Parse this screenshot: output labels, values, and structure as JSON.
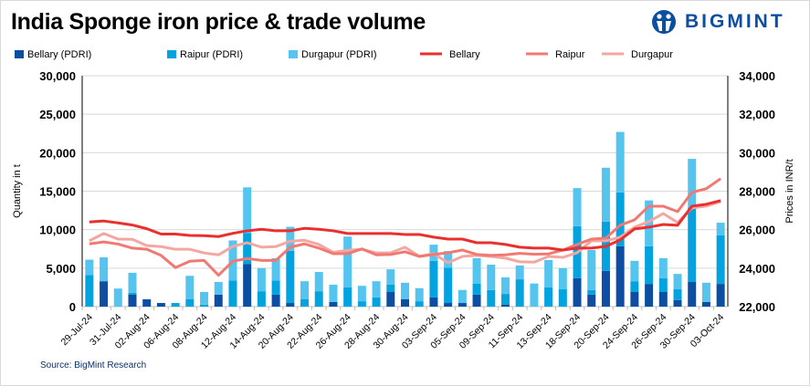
{
  "header": {
    "title": "India Sponge iron price & trade volume",
    "logo": "BIGMINT"
  },
  "source": "Source: BigMint Research",
  "chart_data": {
    "type": "bar+line",
    "title": "India Sponge iron price & trade volume",
    "ylabel": "Quantity in t",
    "y2label": "Prices in INR/t",
    "ylim": [
      0,
      30000
    ],
    "y2lim": [
      22000,
      34000
    ],
    "yticks": [
      "0",
      "5,000",
      "10,000",
      "15,000",
      "20,000",
      "25,000",
      "30,000"
    ],
    "y2ticks": [
      "22,000",
      "24,000",
      "26,000",
      "28,000",
      "30,000",
      "32,000",
      "34,000"
    ],
    "grid": true,
    "legend": "top",
    "categories": [
      "29-Jul-24",
      "",
      "31-Jul-24",
      "",
      "02-Aug-24",
      "",
      "06-Aug-24",
      "",
      "08-Aug-24",
      "",
      "12-Aug-24",
      "",
      "14-Aug-24",
      "",
      "20-Aug-24",
      "",
      "22-Aug-24",
      "",
      "26-Aug-24",
      "",
      "28-Aug-24",
      "",
      "30-Aug-24",
      "",
      "03-Sep-24",
      "",
      "05-Sep-24",
      "",
      "09-Sep-24",
      "",
      "11-Sep-24",
      "",
      "13-Sep-24",
      "",
      "18-Sep-24",
      "",
      "20-Sep-24",
      "",
      "24-Sep-24",
      "",
      "26-Sep-24",
      "",
      "30-Sep-24",
      "",
      "03-Oct-24"
    ],
    "bar_series": [
      {
        "name": "Bellary (PDRI)",
        "color": "#0B4EA2",
        "values": [
          0,
          3300,
          0,
          1550,
          950,
          470,
          0,
          0,
          0,
          1550,
          0,
          5550,
          0,
          1550,
          470,
          0,
          0,
          600,
          0,
          0,
          0,
          1900,
          950,
          0,
          1200,
          470,
          470,
          1550,
          0,
          250,
          0,
          0,
          0,
          0,
          3700,
          1550,
          4650,
          7850,
          1900,
          2950,
          1900,
          850,
          3200,
          600,
          2950
        ]
      },
      {
        "name": "Raipur (PDRI)",
        "color": "#03A3E0",
        "values": [
          4100,
          0,
          0,
          250,
          0,
          0,
          470,
          950,
          250,
          0,
          3400,
          4000,
          2000,
          1850,
          6800,
          950,
          2000,
          0,
          2500,
          700,
          1200,
          950,
          0,
          700,
          4750,
          4600,
          0,
          1450,
          2150,
          1400,
          3550,
          0,
          2500,
          2250,
          6750,
          600,
          6400,
          7000,
          1400,
          4900,
          1800,
          1400,
          9700,
          0,
          6300
        ]
      },
      {
        "name": "Durgapur (PDRI)",
        "color": "#55C5F0",
        "values": [
          2000,
          3100,
          2350,
          2600,
          0,
          0,
          0,
          3050,
          1650,
          1650,
          5200,
          5950,
          3000,
          2900,
          3100,
          2350,
          2500,
          2250,
          6600,
          2000,
          2100,
          2000,
          2150,
          1700,
          2100,
          2150,
          1700,
          3300,
          3300,
          2150,
          1800,
          3000,
          3550,
          2750,
          4950,
          5200,
          7000,
          7850,
          2650,
          5950,
          2600,
          2000,
          6300,
          2500,
          1650
        ]
      }
    ],
    "line_series": [
      {
        "name": "Bellary",
        "color": "#E8302F",
        "values": [
          26400,
          26450,
          26350,
          26240,
          26050,
          25770,
          25770,
          25700,
          25690,
          25640,
          25810,
          25940,
          26020,
          25940,
          25940,
          26070,
          26020,
          25940,
          25800,
          25800,
          25800,
          25800,
          25750,
          25750,
          25610,
          25510,
          25510,
          25320,
          25320,
          25230,
          25090,
          25040,
          25040,
          24940,
          25040,
          25040,
          25130,
          25470,
          26040,
          26130,
          26270,
          26230,
          27220,
          27320,
          27510
        ]
      },
      {
        "name": "Raipur",
        "color": "#F07A73",
        "values": [
          25260,
          25360,
          25250,
          25040,
          24980,
          24660,
          24030,
          24360,
          24400,
          23630,
          24360,
          24500,
          24400,
          24400,
          25090,
          25260,
          25040,
          24750,
          24750,
          25000,
          24690,
          24710,
          24850,
          24610,
          24710,
          24800,
          24940,
          24710,
          24660,
          24690,
          24770,
          24720,
          24740,
          24940,
          25230,
          25510,
          25560,
          26230,
          26510,
          27220,
          27220,
          26940,
          27940,
          28130,
          28650
        ]
      },
      {
        "name": "Durgapur",
        "color": "#F4A7A2",
        "values": [
          25420,
          25800,
          25510,
          25500,
          25170,
          25120,
          24980,
          24980,
          24790,
          24690,
          25130,
          25320,
          25090,
          25120,
          25400,
          25450,
          25230,
          24820,
          24930,
          24980,
          24790,
          24800,
          25090,
          24610,
          24750,
          24280,
          24610,
          24660,
          24610,
          24520,
          24330,
          24310,
          24610,
          24560,
          24800,
          25420,
          25420,
          25610,
          26130,
          26420,
          26840,
          26370,
          27130,
          27220,
          27460
        ]
      }
    ]
  }
}
